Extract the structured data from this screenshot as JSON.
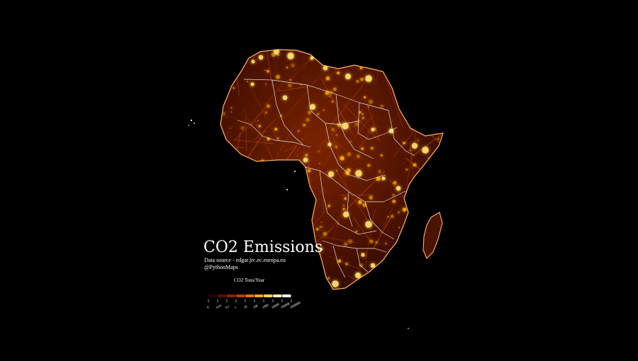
{
  "title": "CO2 Emissions",
  "source": "Data source - edgar.jrc.ec.europa.eu",
  "handle": "@PythonMaps",
  "legend": {
    "title": "CO2 Tons/Year",
    "ticks": [
      "0",
      "0.01",
      "0.1",
      "1",
      "10",
      "100",
      "1000",
      "10000",
      "100000",
      "1000000"
    ],
    "colors": [
      "#220400",
      "#551100",
      "#882400",
      "#b94300",
      "#e07000",
      "#f5a21b",
      "#fbd35a",
      "#fff0bb",
      "#ffffff"
    ]
  },
  "map_colors": {
    "background": "#000000",
    "land": "#4d1200",
    "land_mid": "#7a2200",
    "roads": "#d55500",
    "hotspots": "#ffb000",
    "borders": "#ffffff"
  }
}
